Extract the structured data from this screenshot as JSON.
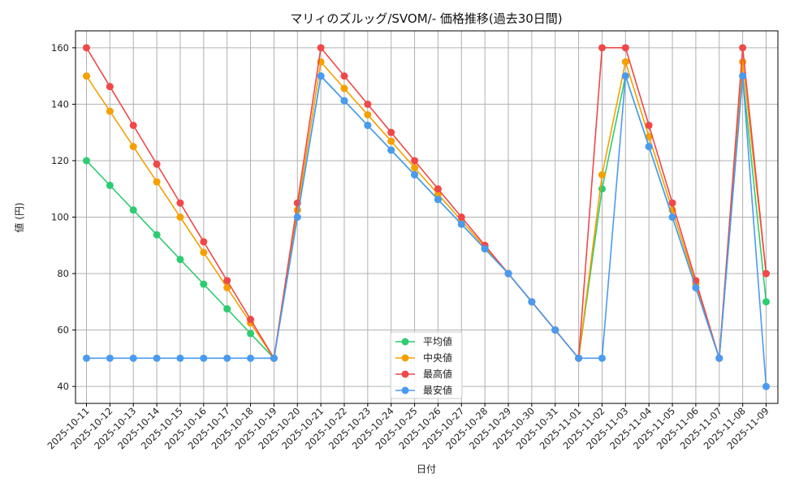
{
  "chart_data": {
    "type": "line",
    "title": "マリィのズルッグ/SVOM/- 価格推移(過去30日間)",
    "xlabel": "日付",
    "ylabel": "値 (円)",
    "ylim": [
      34,
      166
    ],
    "yticks": [
      40,
      60,
      80,
      100,
      120,
      140,
      160
    ],
    "grid": true,
    "legend_position": "bottom-center",
    "categories": [
      "2025-10-11",
      "2025-10-12",
      "2025-10-13",
      "2025-10-14",
      "2025-10-15",
      "2025-10-16",
      "2025-10-17",
      "2025-10-18",
      "2025-10-19",
      "2025-10-20",
      "2025-10-21",
      "2025-10-22",
      "2025-10-23",
      "2025-10-24",
      "2025-10-25",
      "2025-10-26",
      "2025-10-27",
      "2025-10-28",
      "2025-10-29",
      "2025-10-30",
      "2025-10-31",
      "2025-11-01",
      "2025-11-02",
      "2025-11-03",
      "2025-11-04",
      "2025-11-05",
      "2025-11-06",
      "2025-11-07",
      "2025-11-08",
      "2025-11-09"
    ],
    "series": [
      {
        "name": "平均値",
        "color": "#2ecc71",
        "values": [
          120,
          111.25,
          102.5,
          93.75,
          85,
          76.25,
          67.5,
          58.75,
          50,
          100,
          150,
          141.25,
          132.5,
          123.75,
          115,
          106.25,
          97.5,
          88.75,
          80,
          70,
          60,
          50,
          110,
          150,
          125,
          100,
          75,
          50,
          150,
          70
        ]
      },
      {
        "name": "中央値",
        "color": "#f5a000",
        "values": [
          150,
          137.5,
          125,
          112.5,
          100,
          87.5,
          75,
          62.5,
          50,
          102.5,
          155,
          145.6,
          136.25,
          126.9,
          117.5,
          108.1,
          98.75,
          89.4,
          80,
          70,
          60,
          50,
          115,
          155,
          128.5,
          102.5,
          76.25,
          50,
          155,
          80
        ]
      },
      {
        "name": "最高値",
        "color": "#f04848",
        "values": [
          160,
          146.25,
          132.5,
          118.75,
          105,
          91.25,
          77.5,
          63.75,
          50,
          105,
          160,
          150,
          140,
          130,
          120,
          110,
          100,
          90,
          80,
          70,
          60,
          50,
          160,
          160,
          132.5,
          105,
          77.5,
          50,
          160,
          80
        ]
      },
      {
        "name": "最安値",
        "color": "#4a9af0",
        "values": [
          50,
          50,
          50,
          50,
          50,
          50,
          50,
          50,
          50,
          100,
          150,
          141.25,
          132.5,
          123.75,
          115,
          106.25,
          97.5,
          88.75,
          80,
          70,
          60,
          50,
          50,
          150,
          125,
          100,
          75,
          50,
          150,
          40
        ]
      }
    ]
  }
}
